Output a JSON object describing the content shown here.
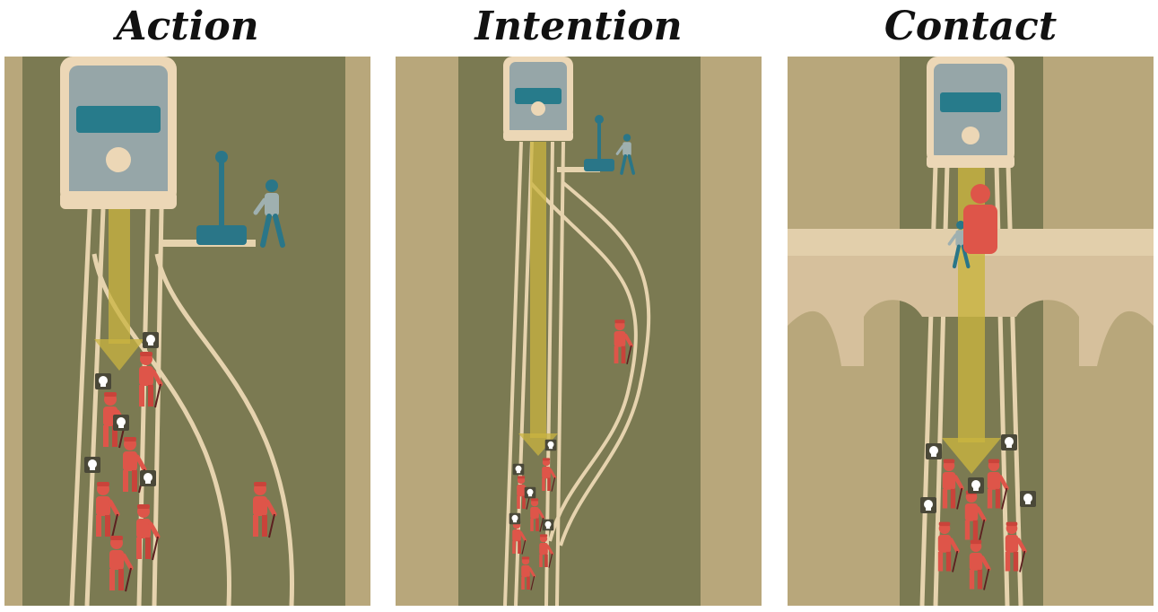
{
  "panels": [
    {
      "id": "action",
      "title": "Action"
    },
    {
      "id": "intention",
      "title": "Intention"
    },
    {
      "id": "contact",
      "title": "Contact"
    }
  ],
  "icons": {
    "tram": "tram-icon",
    "lever": "lever-icon",
    "bystander": "bystander-icon",
    "worker": "worker-icon",
    "skull": "skull-icon",
    "direction_arrow": "arrow-down-icon",
    "bridge": "bridge-icon"
  },
  "colors": {
    "background_sand": "#b8a77b",
    "ground_green": "#7b7a52",
    "track": "#e6d3ae",
    "tram_body": "#96a6a8",
    "tram_roof": "#ecd7b6",
    "tram_window": "#277b8b",
    "teal_person": "#2a7688",
    "worker_red": "#de5549",
    "arrow_yellow": "#c9b440",
    "bridge": "#d6c09c"
  }
}
